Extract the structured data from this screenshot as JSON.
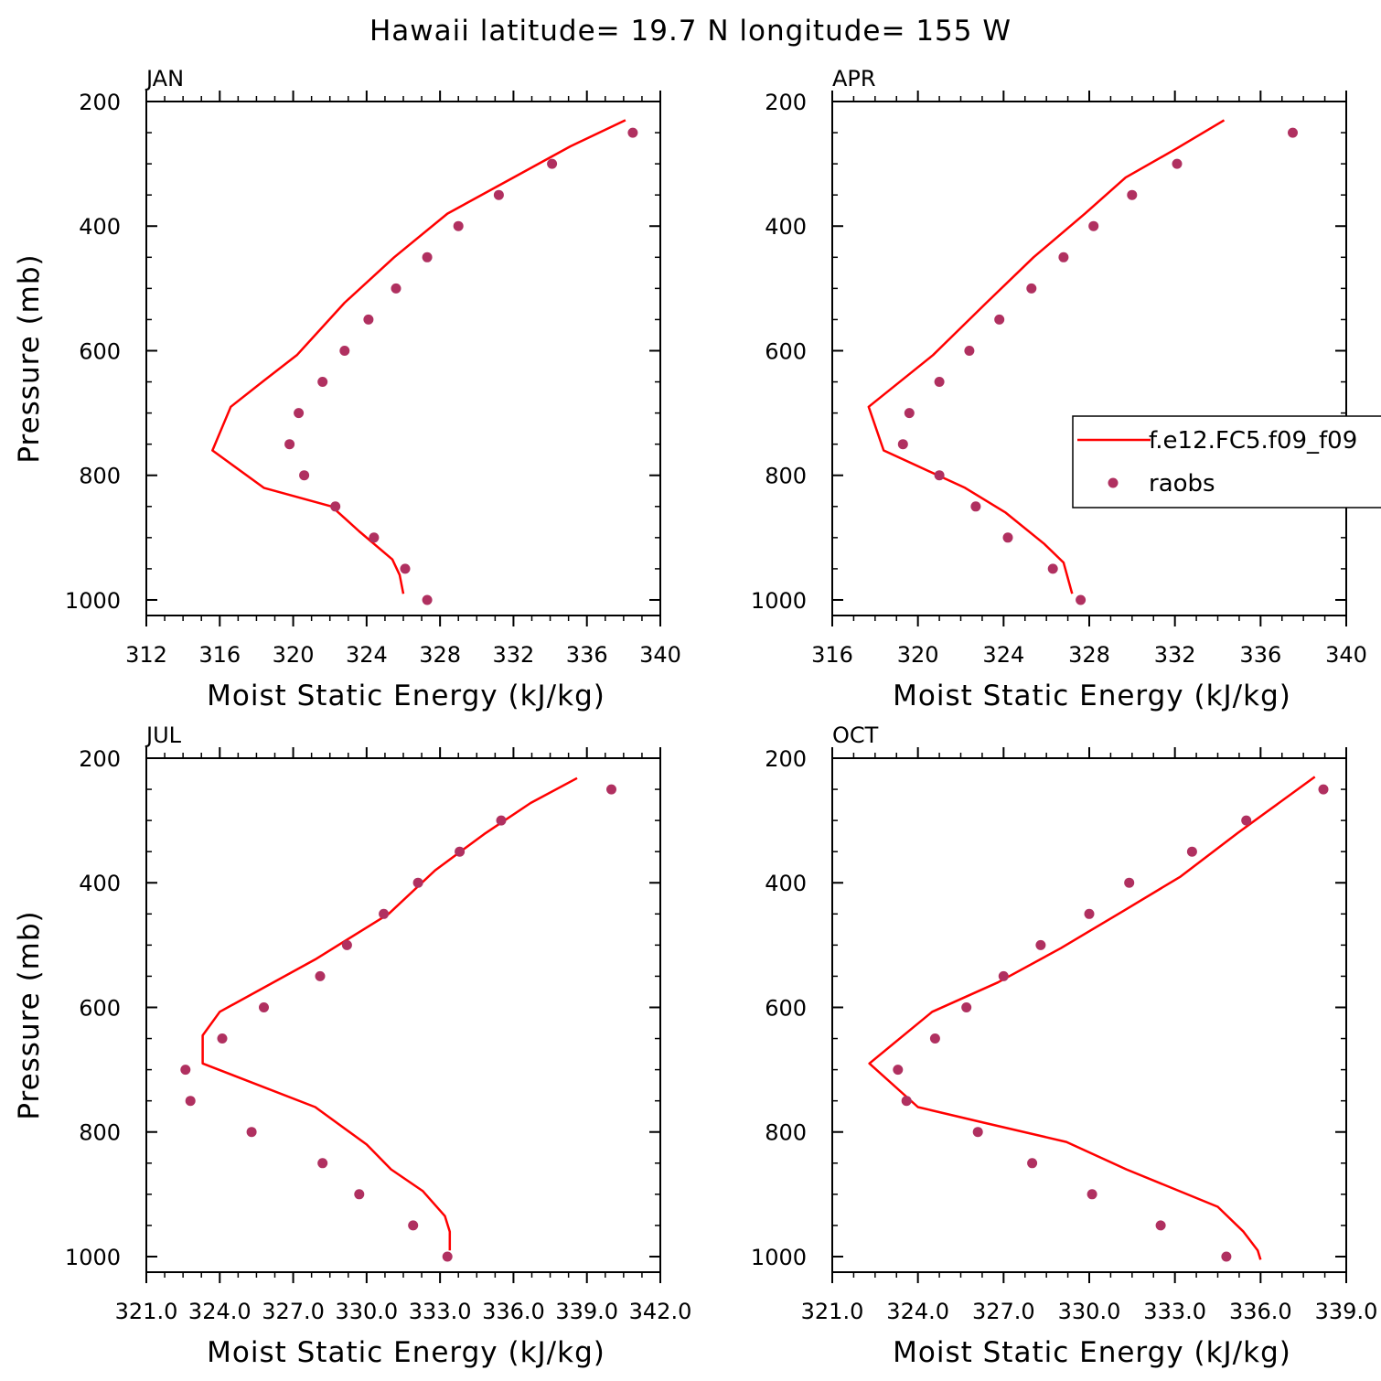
{
  "figure_title": "Hawaii  latitude= 19.7 N longitude= 155 W",
  "legend": {
    "model_label": "f.e12.FC5.f09_f09",
    "obs_label": "raobs",
    "model_color": "#ff0000",
    "obs_color": "#b03060"
  },
  "chart_data": [
    {
      "type": "line",
      "panel": "JAN",
      "title": "JAN",
      "xlabel": "Moist Static Energy (kJ/kg)",
      "ylabel": "Pressure (mb)",
      "xlim": [
        312,
        340
      ],
      "xticks": [
        312,
        316,
        320,
        324,
        328,
        332,
        336,
        340
      ],
      "xtick_labels": [
        "312",
        "316",
        "320",
        "324",
        "328",
        "332",
        "336",
        "340"
      ],
      "ylim": [
        200,
        1025
      ],
      "yticks": [
        200,
        400,
        600,
        800,
        1000
      ],
      "yaxis_inverted": true,
      "series": [
        {
          "name": "f.e12.FC5.f09_f09",
          "kind": "line",
          "x": [
            338.1,
            335.1,
            332.0,
            328.4,
            325.5,
            322.8,
            320.2,
            318.4,
            316.6,
            315.6,
            318.4,
            322.1,
            323.6,
            325.4,
            325.8,
            326.0
          ],
          "y": [
            230,
            272,
            322,
            380,
            450,
            523,
            607,
            648,
            690,
            760,
            820,
            850,
            890,
            935,
            960,
            990
          ]
        },
        {
          "name": "raobs",
          "kind": "scatter",
          "x": [
            338.5,
            334.1,
            331.2,
            329.0,
            327.3,
            325.6,
            324.1,
            322.8,
            321.6,
            320.3,
            319.8,
            320.6,
            322.3,
            324.4,
            326.1,
            327.3
          ],
          "y": [
            250,
            300,
            350,
            400,
            450,
            500,
            550,
            600,
            650,
            700,
            750,
            800,
            850,
            900,
            950,
            1000
          ]
        }
      ]
    },
    {
      "type": "line",
      "panel": "APR",
      "title": "APR",
      "xlabel": "Moist Static Energy (kJ/kg)",
      "ylabel": "",
      "xlim": [
        316,
        340
      ],
      "xticks": [
        316,
        320,
        324,
        328,
        332,
        336,
        340
      ],
      "xtick_labels": [
        "316",
        "320",
        "324",
        "328",
        "332",
        "336",
        "340"
      ],
      "ylim": [
        200,
        1025
      ],
      "yticks": [
        200,
        400,
        600,
        800,
        1000
      ],
      "yaxis_inverted": true,
      "series": [
        {
          "name": "f.e12.FC5.f09_f09",
          "kind": "line",
          "x": [
            334.3,
            332.1,
            329.7,
            327.8,
            325.4,
            323.2,
            320.7,
            317.7,
            318.4,
            322.2,
            324.1,
            325.9,
            326.8,
            327.2
          ],
          "y": [
            230,
            275,
            322,
            380,
            450,
            523,
            607,
            690,
            760,
            820,
            860,
            910,
            940,
            990
          ]
        },
        {
          "name": "raobs",
          "kind": "scatter",
          "x": [
            337.5,
            332.1,
            330.0,
            328.2,
            326.8,
            325.3,
            323.8,
            322.4,
            321.0,
            319.6,
            319.3,
            321.0,
            322.7,
            324.2,
            326.3,
            327.6
          ],
          "y": [
            250,
            300,
            350,
            400,
            450,
            500,
            550,
            600,
            650,
            700,
            750,
            800,
            850,
            900,
            950,
            1000
          ]
        }
      ]
    },
    {
      "type": "line",
      "panel": "JUL",
      "title": "JUL",
      "xlabel": "Moist Static Energy (kJ/kg)",
      "ylabel": "Pressure (mb)",
      "xlim": [
        321.0,
        342.0
      ],
      "xticks": [
        321.0,
        324.0,
        327.0,
        330.0,
        333.0,
        336.0,
        339.0,
        342.0
      ],
      "xtick_labels": [
        "321.0",
        "324.0",
        "327.0",
        "330.0",
        "333.0",
        "336.0",
        "339.0",
        "342.0"
      ],
      "ylim": [
        200,
        1025
      ],
      "yticks": [
        200,
        400,
        600,
        800,
        1000
      ],
      "yaxis_inverted": true,
      "series": [
        {
          "name": "f.e12.FC5.f09_f09",
          "kind": "line",
          "x": [
            338.6,
            336.7,
            334.8,
            332.8,
            330.9,
            327.9,
            324.0,
            323.3,
            323.3,
            327.9,
            330.0,
            331.0,
            332.3,
            333.2,
            333.4,
            333.4
          ],
          "y": [
            232,
            272,
            322,
            380,
            450,
            523,
            607,
            645,
            690,
            760,
            820,
            860,
            895,
            935,
            960,
            990
          ]
        },
        {
          "name": "raobs",
          "kind": "scatter",
          "x": [
            340.0,
            335.5,
            333.8,
            332.1,
            330.7,
            329.2,
            328.1,
            325.8,
            324.1,
            322.6,
            322.8,
            325.3,
            328.2,
            329.7,
            331.9,
            333.3
          ],
          "y": [
            250,
            300,
            350,
            400,
            450,
            500,
            550,
            600,
            650,
            700,
            750,
            800,
            850,
            900,
            950,
            1000
          ]
        }
      ]
    },
    {
      "type": "line",
      "panel": "OCT",
      "title": "OCT",
      "xlabel": "Moist Static Energy (kJ/kg)",
      "ylabel": "",
      "xlim": [
        321.0,
        339.0
      ],
      "xticks": [
        321.0,
        324.0,
        327.0,
        330.0,
        333.0,
        336.0,
        339.0
      ],
      "xtick_labels": [
        "321.0",
        "324.0",
        "327.0",
        "330.0",
        "333.0",
        "336.0",
        "339.0"
      ],
      "ylim": [
        200,
        1025
      ],
      "yticks": [
        200,
        400,
        600,
        800,
        1000
      ],
      "yaxis_inverted": true,
      "series": [
        {
          "name": "f.e12.FC5.f09_f09",
          "kind": "line",
          "x": [
            337.9,
            335.2,
            333.2,
            331.2,
            329.0,
            326.8,
            324.5,
            322.3,
            324.0,
            326.3,
            329.2,
            331.3,
            334.5,
            335.4,
            335.9,
            336.0
          ],
          "y": [
            230,
            320,
            390,
            445,
            505,
            560,
            607,
            690,
            760,
            785,
            816,
            860,
            920,
            960,
            990,
            1005
          ]
        },
        {
          "name": "raobs",
          "kind": "scatter",
          "x": [
            338.2,
            335.5,
            333.6,
            331.4,
            330.0,
            328.3,
            327.0,
            325.7,
            324.6,
            323.3,
            323.6,
            326.1,
            328.0,
            330.1,
            332.5,
            334.8
          ],
          "y": [
            250,
            300,
            350,
            400,
            450,
            500,
            550,
            600,
            650,
            700,
            750,
            800,
            850,
            900,
            950,
            1000
          ]
        }
      ]
    }
  ]
}
